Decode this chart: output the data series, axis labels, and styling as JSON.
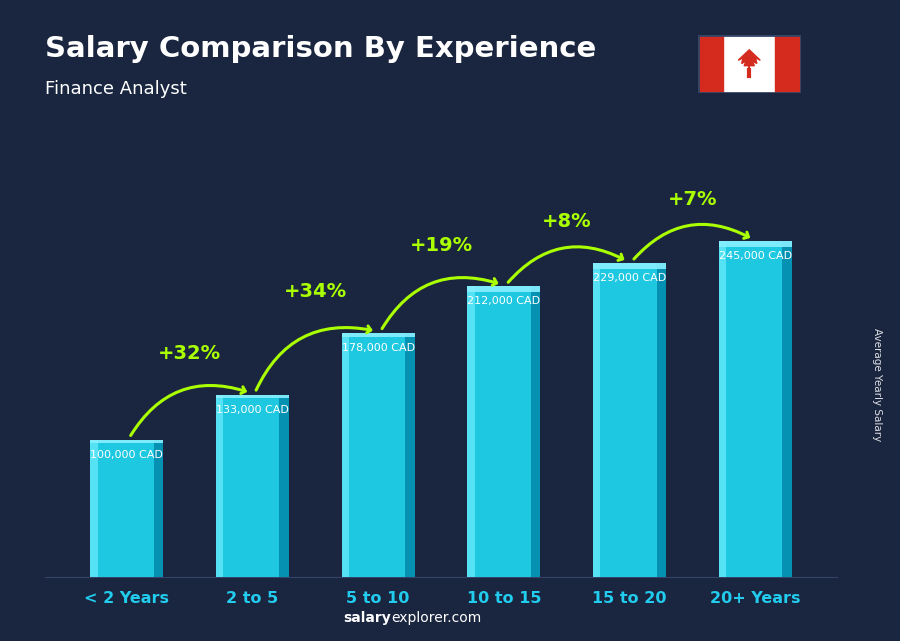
{
  "title": "Salary Comparison By Experience",
  "subtitle": "Finance Analyst",
  "categories": [
    "< 2 Years",
    "2 to 5",
    "5 to 10",
    "10 to 15",
    "15 to 20",
    "20+ Years"
  ],
  "values": [
    100000,
    133000,
    178000,
    212000,
    229000,
    245000
  ],
  "value_labels": [
    "100,000 CAD",
    "133,000 CAD",
    "178,000 CAD",
    "212,000 CAD",
    "229,000 CAD",
    "245,000 CAD"
  ],
  "pct_labels": [
    "+32%",
    "+34%",
    "+19%",
    "+8%",
    "+7%"
  ],
  "bar_main_color": "#1ec8e0",
  "bar_left_highlight": "#6eeeff",
  "bar_right_shadow": "#0088aa",
  "bar_top_color": "#88f0ff",
  "bg_color": "#1a2640",
  "title_color": "#ffffff",
  "subtitle_color": "#ffffff",
  "value_label_color": "#ffffff",
  "pct_color": "#aaff00",
  "xtick_color": "#22ccee",
  "ylabel_text": "Average Yearly Salary",
  "footer_salary": "salary",
  "footer_rest": "explorer.com",
  "ylim_max": 290000,
  "flag_red": "#d52b1e",
  "flag_white": "#ffffff"
}
